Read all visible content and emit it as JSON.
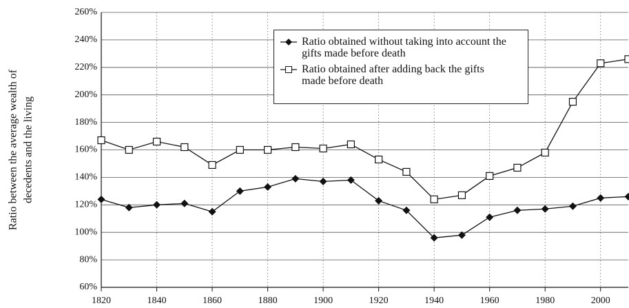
{
  "chart_data": {
    "type": "line",
    "y_label": [
      "Ratio between the average wealth of",
      "decedents and the living"
    ],
    "x": [
      1820,
      1830,
      1840,
      1850,
      1860,
      1870,
      1880,
      1890,
      1900,
      1910,
      1920,
      1930,
      1940,
      1950,
      1960,
      1970,
      1980,
      1990,
      2000,
      2010
    ],
    "series": [
      {
        "name": "Ratio obtained without taking into account the gifts made before death",
        "color": "#111111",
        "marker": "diamond",
        "values": [
          124,
          118,
          120,
          121,
          115,
          130,
          133,
          139,
          137,
          138,
          123,
          116,
          96,
          98,
          111,
          116,
          117,
          119,
          125,
          126
        ]
      },
      {
        "name": "Ratio obtained after adding back the gifts made before death",
        "color": "#111111",
        "marker": "square",
        "values": [
          167,
          160,
          166,
          162,
          149,
          160,
          160,
          162,
          161,
          164,
          153,
          144,
          124,
          127,
          141,
          147,
          158,
          195,
          223,
          226
        ]
      }
    ],
    "xlim": [
      1820,
      2010
    ],
    "xticks": [
      1820,
      1840,
      1860,
      1880,
      1900,
      1920,
      1940,
      1960,
      1980,
      2000
    ],
    "ylim": [
      60,
      260
    ],
    "yticks": [
      {
        "value": 60,
        "label": "60%"
      },
      {
        "value": 80,
        "label": "80%"
      },
      {
        "value": 100,
        "label": "100%"
      },
      {
        "value": 120,
        "label": "120%"
      },
      {
        "value": 140,
        "label": "140%"
      },
      {
        "value": 160,
        "label": "160%"
      },
      {
        "value": 180,
        "label": "180%"
      },
      {
        "value": 200,
        "label": "200%"
      },
      {
        "value": 220,
        "label": "220%"
      },
      {
        "value": 240,
        "label": "240%"
      },
      {
        "value": 260,
        "label": "260%"
      }
    ],
    "grid": true
  }
}
